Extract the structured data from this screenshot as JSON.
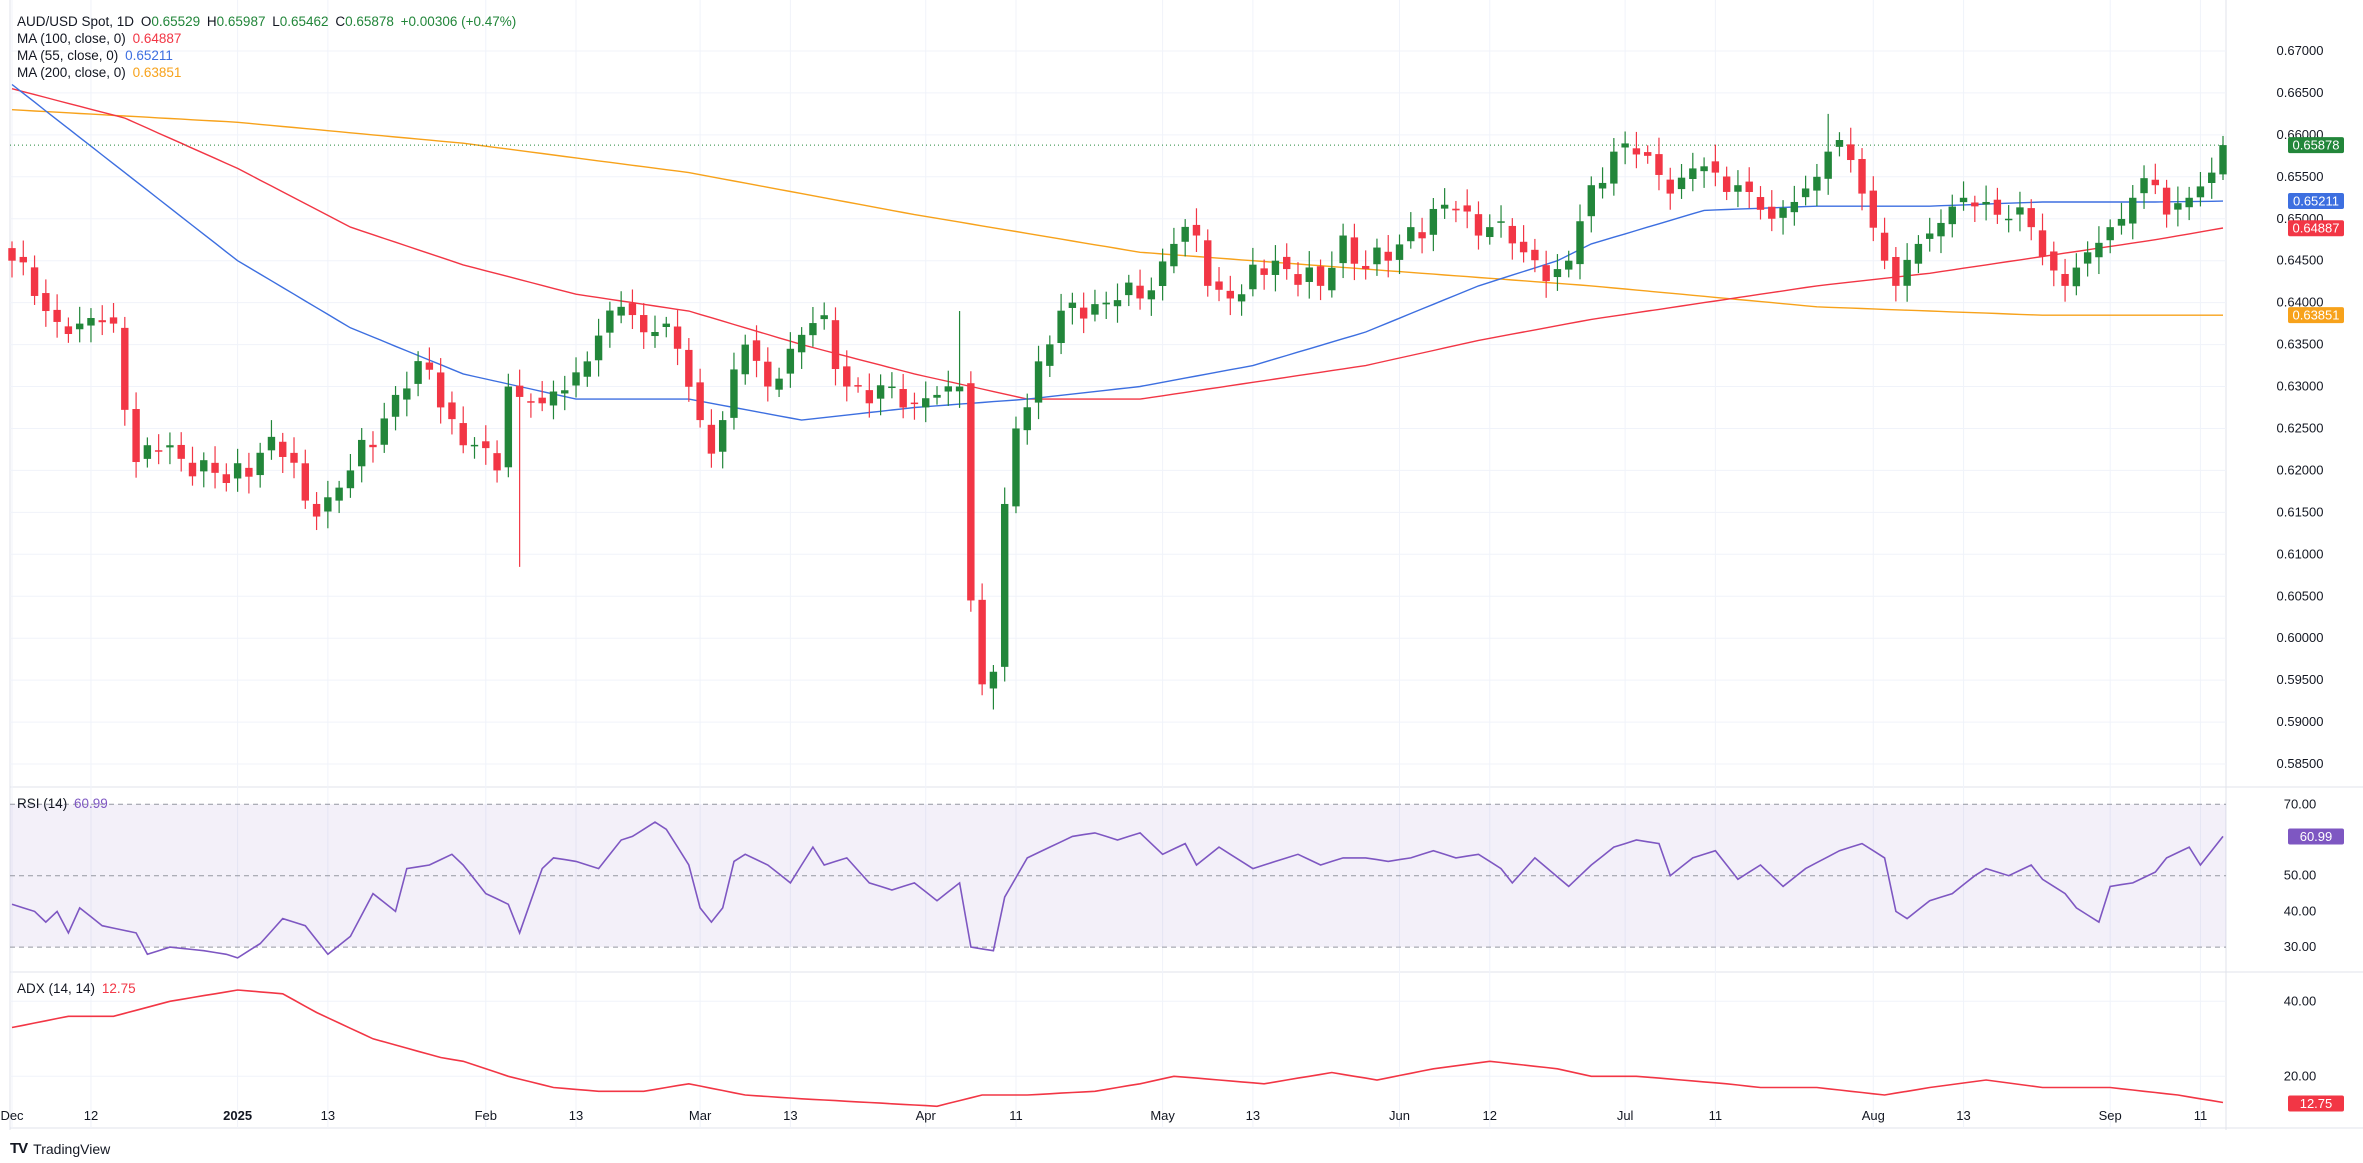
{
  "colors": {
    "up": "#22863a",
    "down": "#f23645",
    "ma100": "#f23645",
    "ma55": "#3d6fe0",
    "ma200": "#f7a21b",
    "rsi": "#7e57c2",
    "adx": "#f23645",
    "grid": "#f0f3fa"
  },
  "legend": {
    "symbol": "AUD/USD Spot, 1D",
    "o_lab": "O",
    "o": "0.65529",
    "h_lab": "H",
    "h": "0.65987",
    "l_lab": "L",
    "l": "0.65462",
    "c_lab": "C",
    "c": "0.65878",
    "chg": "+0.00306 (+0.47%)",
    "ma100_lab": "MA (100, close, 0)",
    "ma100": "0.64887",
    "ma55_lab": "MA (55, close, 0)",
    "ma55": "0.65211",
    "ma200_lab": "MA (200, close, 0)",
    "ma200": "0.63851"
  },
  "rsi_legend": {
    "label": "RSI (14)",
    "value": "60.99"
  },
  "adx_legend": {
    "label": "ADX (14, 14)",
    "value": "12.75"
  },
  "brand": {
    "name": "TradingView",
    "logo": "TV"
  },
  "chart_data": [
    {
      "type": "candlestick",
      "title": "AUD/USD Spot, 1D",
      "ylim": [
        0.5825,
        0.6725
      ],
      "price_ticks": [
        "0.67000",
        "0.66500",
        "0.66000",
        "0.65500",
        "0.65000",
        "0.64500",
        "0.64000",
        "0.63500",
        "0.63000",
        "0.62500",
        "0.62000",
        "0.61500",
        "0.61000",
        "0.60500",
        "0.60000",
        "0.59500",
        "0.59000",
        "0.58500"
      ],
      "x_ticks": [
        {
          "label": "Dec",
          "x": 0
        },
        {
          "label": "12",
          "x": 7
        },
        {
          "label": "2025",
          "x": 20
        },
        {
          "label": "13",
          "x": 28
        },
        {
          "label": "Feb",
          "x": 42
        },
        {
          "label": "13",
          "x": 50
        },
        {
          "label": "Mar",
          "x": 61
        },
        {
          "label": "13",
          "x": 69
        },
        {
          "label": "Apr",
          "x": 81
        },
        {
          "label": "11",
          "x": 89
        },
        {
          "label": "May",
          "x": 102
        },
        {
          "label": "13",
          "x": 110
        },
        {
          "label": "Jun",
          "x": 123
        },
        {
          "label": "12",
          "x": 131
        },
        {
          "label": "Jul",
          "x": 143
        },
        {
          "label": "11",
          "x": 151
        },
        {
          "label": "Aug",
          "x": 165
        },
        {
          "label": "13",
          "x": 173
        },
        {
          "label": "Sep",
          "x": 186
        },
        {
          "label": "11",
          "x": 194
        }
      ],
      "close_anchors": [
        [
          0,
          0.645
        ],
        [
          3,
          0.639
        ],
        [
          6,
          0.6375
        ],
        [
          9,
          0.6375
        ],
        [
          11,
          0.621
        ],
        [
          14,
          0.623
        ],
        [
          19,
          0.6185
        ],
        [
          23,
          0.624
        ],
        [
          27,
          0.6145
        ],
        [
          30,
          0.62
        ],
        [
          34,
          0.629
        ],
        [
          37,
          0.632
        ],
        [
          40,
          0.623
        ],
        [
          43,
          0.62
        ],
        [
          44,
          0.63
        ],
        [
          47,
          0.628
        ],
        [
          51,
          0.633
        ],
        [
          54,
          0.6395
        ],
        [
          57,
          0.6365
        ],
        [
          59,
          0.6345
        ],
        [
          61,
          0.626
        ],
        [
          62,
          0.622
        ],
        [
          63,
          0.626
        ],
        [
          65,
          0.635
        ],
        [
          67,
          0.63
        ],
        [
          69,
          0.6345
        ],
        [
          72,
          0.6385
        ],
        [
          74,
          0.63
        ],
        [
          76,
          0.628
        ],
        [
          78,
          0.63
        ],
        [
          80,
          0.628
        ],
        [
          82,
          0.629
        ],
        [
          84,
          0.63
        ],
        [
          85,
          0.6045
        ],
        [
          86,
          0.5945
        ],
        [
          87,
          0.596
        ],
        [
          88,
          0.616
        ],
        [
          89,
          0.625
        ],
        [
          91,
          0.633
        ],
        [
          94,
          0.64
        ],
        [
          97,
          0.64
        ],
        [
          100,
          0.6405
        ],
        [
          103,
          0.647
        ],
        [
          105,
          0.648
        ],
        [
          106,
          0.642
        ],
        [
          109,
          0.641
        ],
        [
          112,
          0.645
        ],
        [
          116,
          0.642
        ],
        [
          118,
          0.648
        ],
        [
          120,
          0.644
        ],
        [
          122,
          0.645
        ],
        [
          124,
          0.649
        ],
        [
          128,
          0.651
        ],
        [
          131,
          0.649
        ],
        [
          134,
          0.646
        ],
        [
          137,
          0.644
        ],
        [
          138,
          0.645
        ],
        [
          140,
          0.654
        ],
        [
          142,
          0.658
        ],
        [
          145,
          0.6575
        ],
        [
          147,
          0.653
        ],
        [
          149,
          0.656
        ],
        [
          151,
          0.6555
        ],
        [
          153,
          0.654
        ],
        [
          156,
          0.65
        ],
        [
          158,
          0.652
        ],
        [
          160,
          0.655
        ],
        [
          161,
          0.658
        ],
        [
          163,
          0.657
        ],
        [
          164,
          0.653
        ],
        [
          166,
          0.645
        ],
        [
          167,
          0.642
        ],
        [
          169,
          0.647
        ],
        [
          171,
          0.6495
        ],
        [
          173,
          0.6525
        ],
        [
          175,
          0.652
        ],
        [
          177,
          0.65
        ],
        [
          179,
          0.649
        ],
        [
          180,
          0.6455
        ],
        [
          182,
          0.642
        ],
        [
          184,
          0.646
        ],
        [
          186,
          0.649
        ],
        [
          188,
          0.6525
        ],
        [
          190,
          0.654
        ],
        [
          191,
          0.6505
        ],
        [
          193,
          0.6525
        ],
        [
          195,
          0.6555
        ],
        [
          196,
          0.6588
        ]
      ],
      "ma100": [
        [
          0,
          0.6655
        ],
        [
          10,
          0.662
        ],
        [
          20,
          0.656
        ],
        [
          30,
          0.649
        ],
        [
          40,
          0.6445
        ],
        [
          50,
          0.641
        ],
        [
          60,
          0.639
        ],
        [
          70,
          0.635
        ],
        [
          80,
          0.6315
        ],
        [
          90,
          0.6285
        ],
        [
          100,
          0.6285
        ],
        [
          110,
          0.6305
        ],
        [
          120,
          0.6325
        ],
        [
          130,
          0.6355
        ],
        [
          140,
          0.638
        ],
        [
          150,
          0.64
        ],
        [
          160,
          0.642
        ],
        [
          170,
          0.6435
        ],
        [
          180,
          0.6455
        ],
        [
          190,
          0.6475
        ],
        [
          196,
          0.6489
        ]
      ],
      "ma55": [
        [
          0,
          0.666
        ],
        [
          10,
          0.6555
        ],
        [
          20,
          0.645
        ],
        [
          30,
          0.637
        ],
        [
          40,
          0.6315
        ],
        [
          50,
          0.6285
        ],
        [
          60,
          0.6285
        ],
        [
          70,
          0.626
        ],
        [
          80,
          0.6275
        ],
        [
          90,
          0.6285
        ],
        [
          100,
          0.63
        ],
        [
          110,
          0.6325
        ],
        [
          120,
          0.6365
        ],
        [
          130,
          0.642
        ],
        [
          137,
          0.645
        ],
        [
          140,
          0.647
        ],
        [
          150,
          0.651
        ],
        [
          160,
          0.6515
        ],
        [
          170,
          0.6515
        ],
        [
          180,
          0.652
        ],
        [
          190,
          0.652
        ],
        [
          196,
          0.6521
        ]
      ],
      "ma200": [
        [
          0,
          0.663
        ],
        [
          20,
          0.6615
        ],
        [
          40,
          0.659
        ],
        [
          60,
          0.6555
        ],
        [
          80,
          0.6505
        ],
        [
          100,
          0.646
        ],
        [
          120,
          0.644
        ],
        [
          140,
          0.642
        ],
        [
          160,
          0.6395
        ],
        [
          170,
          0.639
        ],
        [
          180,
          0.6385
        ],
        [
          196,
          0.6385
        ]
      ]
    },
    {
      "type": "line",
      "title": "RSI (14)",
      "ylim": [
        25,
        74
      ],
      "ticks": [
        "70.00",
        "50.00",
        "40.00",
        "30.00"
      ],
      "levels": [
        70,
        50,
        30
      ],
      "values": [
        [
          0,
          42
        ],
        [
          2,
          40
        ],
        [
          3,
          37
        ],
        [
          4,
          40
        ],
        [
          5,
          34
        ],
        [
          6,
          41
        ],
        [
          8,
          36
        ],
        [
          11,
          34
        ],
        [
          12,
          28
        ],
        [
          14,
          30
        ],
        [
          17,
          29
        ],
        [
          19,
          28
        ],
        [
          20,
          27
        ],
        [
          22,
          31
        ],
        [
          24,
          38
        ],
        [
          26,
          36
        ],
        [
          28,
          28
        ],
        [
          30,
          33
        ],
        [
          32,
          45
        ],
        [
          34,
          40
        ],
        [
          35,
          52
        ],
        [
          37,
          53
        ],
        [
          39,
          56
        ],
        [
          40,
          53
        ],
        [
          42,
          45
        ],
        [
          44,
          42
        ],
        [
          45,
          34
        ],
        [
          47,
          52
        ],
        [
          48,
          55
        ],
        [
          50,
          54
        ],
        [
          52,
          52
        ],
        [
          54,
          60
        ],
        [
          55,
          61
        ],
        [
          57,
          65
        ],
        [
          58,
          63
        ],
        [
          60,
          53
        ],
        [
          61,
          41
        ],
        [
          62,
          37
        ],
        [
          63,
          41
        ],
        [
          64,
          54
        ],
        [
          65,
          56
        ],
        [
          67,
          53
        ],
        [
          69,
          48
        ],
        [
          71,
          58
        ],
        [
          72,
          53
        ],
        [
          74,
          55
        ],
        [
          76,
          48
        ],
        [
          78,
          46
        ],
        [
          80,
          48
        ],
        [
          82,
          43
        ],
        [
          84,
          48
        ],
        [
          85,
          30
        ],
        [
          87,
          29
        ],
        [
          88,
          44
        ],
        [
          90,
          55
        ],
        [
          92,
          58
        ],
        [
          94,
          61
        ],
        [
          96,
          62
        ],
        [
          98,
          60
        ],
        [
          100,
          62
        ],
        [
          102,
          56
        ],
        [
          104,
          59
        ],
        [
          105,
          53
        ],
        [
          107,
          58
        ],
        [
          110,
          52
        ],
        [
          112,
          54
        ],
        [
          114,
          56
        ],
        [
          116,
          53
        ],
        [
          118,
          55
        ],
        [
          120,
          55
        ],
        [
          122,
          54
        ],
        [
          124,
          55
        ],
        [
          126,
          57
        ],
        [
          128,
          55
        ],
        [
          130,
          56
        ],
        [
          132,
          52
        ],
        [
          133,
          48
        ],
        [
          135,
          55
        ],
        [
          138,
          47
        ],
        [
          140,
          53
        ],
        [
          142,
          58
        ],
        [
          144,
          60
        ],
        [
          146,
          59
        ],
        [
          147,
          50
        ],
        [
          149,
          55
        ],
        [
          151,
          57
        ],
        [
          153,
          49
        ],
        [
          155,
          53
        ],
        [
          157,
          47
        ],
        [
          159,
          52
        ],
        [
          162,
          57
        ],
        [
          164,
          59
        ],
        [
          166,
          55
        ],
        [
          167,
          40
        ],
        [
          168,
          38
        ],
        [
          170,
          43
        ],
        [
          172,
          45
        ],
        [
          174,
          50
        ],
        [
          175,
          52
        ],
        [
          177,
          50
        ],
        [
          179,
          53
        ],
        [
          180,
          49
        ],
        [
          182,
          45
        ],
        [
          183,
          41
        ],
        [
          185,
          37
        ],
        [
          186,
          47
        ],
        [
          188,
          48
        ],
        [
          190,
          51
        ],
        [
          191,
          55
        ],
        [
          193,
          58
        ],
        [
          194,
          53
        ],
        [
          195,
          57
        ],
        [
          196,
          61
        ]
      ]
    },
    {
      "type": "line",
      "title": "ADX (14, 14)",
      "ylim": [
        7,
        47
      ],
      "ticks": [
        "40.00",
        "20.00"
      ],
      "values": [
        [
          0,
          33
        ],
        [
          5,
          36
        ],
        [
          9,
          36
        ],
        [
          14,
          40
        ],
        [
          20,
          43
        ],
        [
          24,
          42
        ],
        [
          27,
          37
        ],
        [
          32,
          30
        ],
        [
          38,
          25
        ],
        [
          40,
          24
        ],
        [
          44,
          20
        ],
        [
          48,
          17
        ],
        [
          52,
          16
        ],
        [
          56,
          16
        ],
        [
          60,
          18
        ],
        [
          65,
          15
        ],
        [
          70,
          14
        ],
        [
          76,
          13
        ],
        [
          82,
          12
        ],
        [
          86,
          15
        ],
        [
          90,
          15
        ],
        [
          96,
          16
        ],
        [
          100,
          18
        ],
        [
          103,
          20
        ],
        [
          107,
          19
        ],
        [
          111,
          18
        ],
        [
          117,
          21
        ],
        [
          121,
          19
        ],
        [
          126,
          22
        ],
        [
          131,
          24
        ],
        [
          137,
          22
        ],
        [
          140,
          20
        ],
        [
          144,
          20
        ],
        [
          148,
          19
        ],
        [
          152,
          18
        ],
        [
          155,
          17
        ],
        [
          160,
          17
        ],
        [
          166,
          15
        ],
        [
          170,
          17
        ],
        [
          175,
          19
        ],
        [
          180,
          17
        ],
        [
          186,
          17
        ],
        [
          192,
          15
        ],
        [
          196,
          13
        ]
      ]
    }
  ]
}
